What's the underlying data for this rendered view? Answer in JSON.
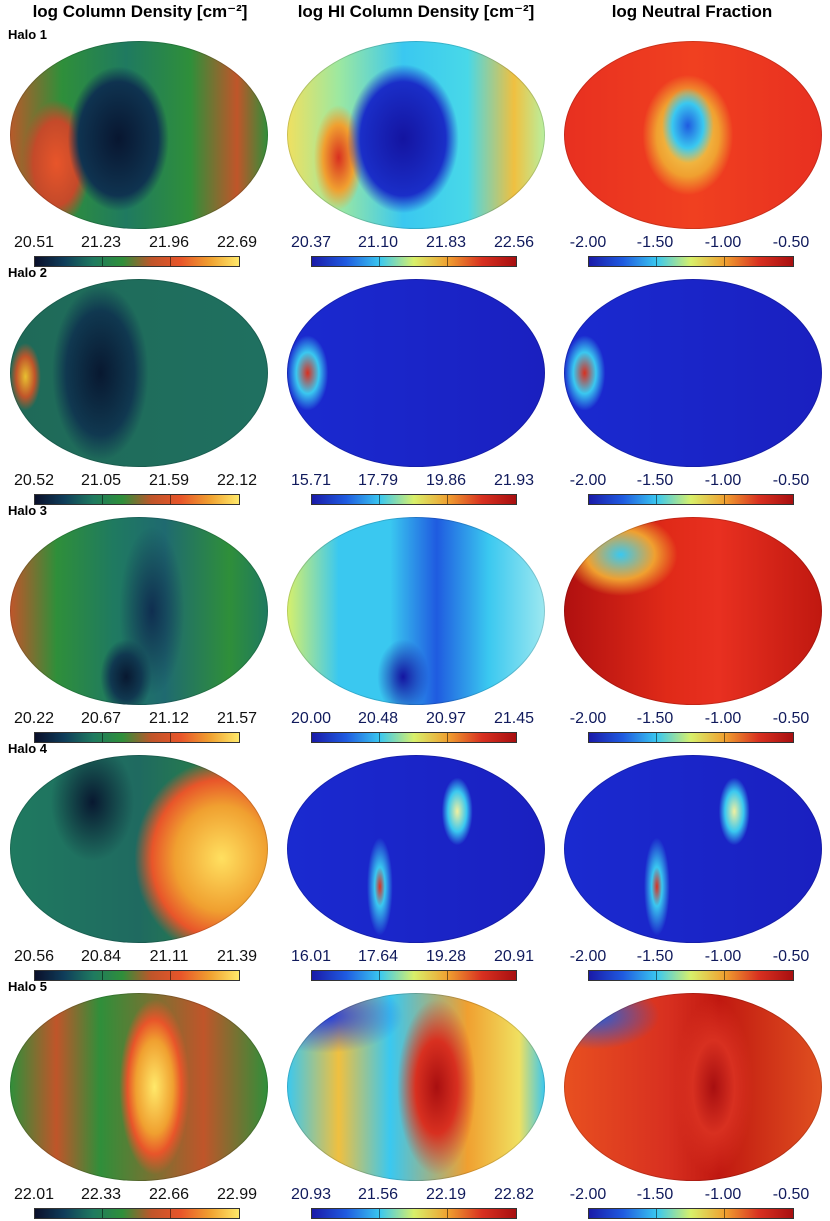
{
  "columns": [
    "log Column Density [cm⁻²]",
    "log HI Column Density [cm⁻²]",
    "log Neutral Fraction"
  ],
  "colormaps": {
    "col1": [
      "#0a0f2a",
      "#0f3d5a",
      "#1f7a60",
      "#2f8f3a",
      "#c0552a",
      "#e8552a",
      "#f0a030",
      "#ffe96a"
    ],
    "col2": [
      "#1a1aa8",
      "#1f5be0",
      "#3ac8f0",
      "#d8f06a",
      "#f0a030",
      "#d83020",
      "#a80f10"
    ],
    "col3": [
      "#1a1aa8",
      "#1f5be0",
      "#3ac8f0",
      "#d8f06a",
      "#f0a030",
      "#d83020",
      "#a80f10"
    ]
  },
  "halos": [
    {
      "label": "Halo 1",
      "ticks": [
        [
          "20.51",
          "21.23",
          "21.96",
          "22.69"
        ],
        [
          "20.37",
          "21.10",
          "21.83",
          "22.56"
        ],
        [
          "-2.00",
          "-1.50",
          "-1.00",
          "-0.50"
        ]
      ]
    },
    {
      "label": "Halo 2",
      "ticks": [
        [
          "20.52",
          "21.05",
          "21.59",
          "22.12"
        ],
        [
          "15.71",
          "17.79",
          "19.86",
          "21.93"
        ],
        [
          "-2.00",
          "-1.50",
          "-1.00",
          "-0.50"
        ]
      ]
    },
    {
      "label": "Halo 3",
      "ticks": [
        [
          "20.22",
          "20.67",
          "21.12",
          "21.57"
        ],
        [
          "20.00",
          "20.48",
          "20.97",
          "21.45"
        ],
        [
          "-2.00",
          "-1.50",
          "-1.00",
          "-0.50"
        ]
      ]
    },
    {
      "label": "Halo 4",
      "ticks": [
        [
          "20.56",
          "20.84",
          "21.11",
          "21.39"
        ],
        [
          "16.01",
          "17.64",
          "19.28",
          "20.91"
        ],
        [
          "-2.00",
          "-1.50",
          "-1.00",
          "-0.50"
        ]
      ]
    },
    {
      "label": "Halo 5",
      "ticks": [
        [
          "22.01",
          "22.33",
          "22.66",
          "22.99"
        ],
        [
          "20.93",
          "21.56",
          "22.19",
          "22.82"
        ],
        [
          "-2.00",
          "-1.50",
          "-1.00",
          "-0.50"
        ]
      ]
    }
  ]
}
